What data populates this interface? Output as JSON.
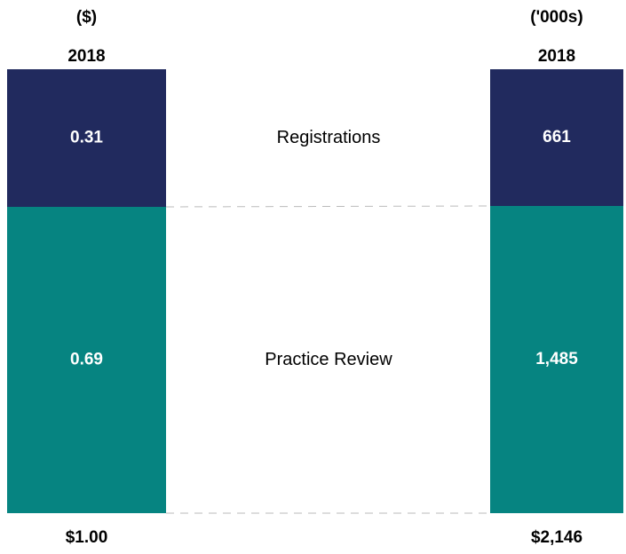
{
  "chart_data": {
    "type": "stacked-bar",
    "series": [
      {
        "name": "Registrations",
        "color": "#212a5e",
        "values": [
          0.31,
          661
        ],
        "value_labels": [
          "0.31",
          "661"
        ]
      },
      {
        "name": "Practice Review",
        "color": "#068481",
        "values": [
          0.69,
          1485
        ],
        "value_labels": [
          "0.69",
          "1,485"
        ]
      }
    ],
    "columns": [
      {
        "unit": "($)",
        "label": "2018",
        "total": 1,
        "total_label": "$1.00",
        "ylim": [
          0,
          1
        ]
      },
      {
        "unit": "('000s)",
        "label": "2018",
        "total": 2146,
        "total_label": "$2,146",
        "ylim": [
          0,
          2146
        ]
      }
    ]
  }
}
